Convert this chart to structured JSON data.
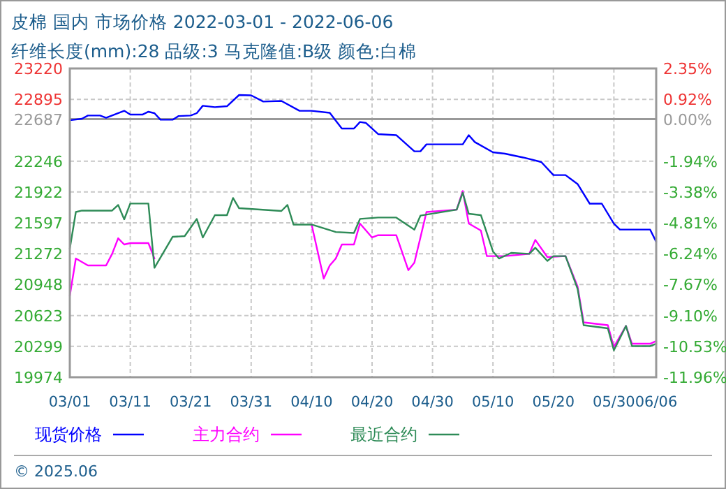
{
  "chart_data": {
    "type": "line",
    "title": "皮棉 国内 市场价格 2022-03-01 - 2022-06-06",
    "subtitle": "纤维长度(mm):28 品级:3 马克隆值:B级 颜色:白棉",
    "annotations": [
      "© 2025.06"
    ],
    "xlim": [
      "2022-03-01",
      "2022-06-06"
    ],
    "xticks": [
      {
        "value": "2022-03-01",
        "label": "03/01"
      },
      {
        "value": "2022-03-11",
        "label": "03/11"
      },
      {
        "value": "2022-03-21",
        "label": "03/21"
      },
      {
        "value": "2022-03-31",
        "label": "03/31"
      },
      {
        "value": "2022-04-10",
        "label": "04/10"
      },
      {
        "value": "2022-04-20",
        "label": "04/20"
      },
      {
        "value": "2022-04-30",
        "label": "04/30"
      },
      {
        "value": "2022-05-10",
        "label": "05/10"
      },
      {
        "value": "2022-05-20",
        "label": "05/20"
      },
      {
        "value": "2022-05-30",
        "label": "05/30"
      },
      {
        "value": "2022-06-06",
        "label": "06/06"
      }
    ],
    "ylim": [
      19974,
      23220
    ],
    "yticks": [
      23220,
      22895,
      22687,
      22246,
      21922,
      21597,
      21272,
      20948,
      20623,
      20299,
      19974
    ],
    "y2lim": [
      -11.96,
      2.35
    ],
    "y2ticks": [
      {
        "value": 2.35,
        "label": "2.35%"
      },
      {
        "value": 0.92,
        "label": "0.92%"
      },
      {
        "value": 0,
        "label": "0.00%"
      },
      {
        "value": -1.94,
        "label": "-1.94%"
      },
      {
        "value": -3.38,
        "label": "-3.38%"
      },
      {
        "value": -4.81,
        "label": "-4.81%"
      },
      {
        "value": -6.24,
        "label": "-6.24%"
      },
      {
        "value": -7.67,
        "label": "-7.67%"
      },
      {
        "value": -9.1,
        "label": "-9.10%"
      },
      {
        "value": -10.53,
        "label": "-10.53%"
      },
      {
        "value": -11.96,
        "label": "-11.96%"
      }
    ],
    "ref_lines": [
      {
        "axis": "y",
        "value": 22687,
        "color": "#999999"
      }
    ],
    "grid": true,
    "legend": "bottom",
    "line_style": "solid",
    "marker": "none",
    "series": [
      {
        "name": "现货价格",
        "color": "#0000ff",
        "x": [
          "2022-03-01",
          "2022-03-03",
          "2022-03-04",
          "2022-03-06",
          "2022-03-07",
          "2022-03-10",
          "2022-03-11",
          "2022-03-13",
          "2022-03-14",
          "2022-03-15",
          "2022-03-16",
          "2022-03-18",
          "2022-03-19",
          "2022-03-21",
          "2022-03-22",
          "2022-03-23",
          "2022-03-25",
          "2022-03-27",
          "2022-03-29",
          "2022-03-31",
          "2022-04-02",
          "2022-04-05",
          "2022-04-08",
          "2022-04-10",
          "2022-04-13",
          "2022-04-15",
          "2022-04-17",
          "2022-04-18",
          "2022-04-19",
          "2022-04-21",
          "2022-04-24",
          "2022-04-27",
          "2022-04-28",
          "2022-04-29",
          "2022-05-05",
          "2022-05-06",
          "2022-05-07",
          "2022-05-10",
          "2022-05-12",
          "2022-05-15",
          "2022-05-18",
          "2022-05-20",
          "2022-05-22",
          "2022-05-24",
          "2022-05-26",
          "2022-05-28",
          "2022-05-30",
          "2022-05-31",
          "2022-06-05",
          "2022-06-06"
        ],
        "values": [
          22676,
          22691,
          22725,
          22725,
          22701,
          22775,
          22735,
          22735,
          22765,
          22750,
          22681,
          22681,
          22720,
          22725,
          22750,
          22828,
          22813,
          22823,
          22941,
          22937,
          22872,
          22878,
          22775,
          22775,
          22754,
          22588,
          22588,
          22657,
          22647,
          22530,
          22519,
          22349,
          22349,
          22422,
          22422,
          22519,
          22446,
          22339,
          22324,
          22284,
          22236,
          22099,
          22099,
          22005,
          21799,
          21799,
          21589,
          21526,
          21526,
          21398
        ]
      },
      {
        "name": "主力合约",
        "color": "#ff00ff",
        "x": [
          "2022-03-01",
          "2022-03-02",
          "2022-03-04",
          "2022-03-07",
          "2022-03-08",
          "2022-03-09",
          "2022-03-10",
          "2022-03-11",
          "2022-03-14",
          "2022-03-15",
          "2022-03-16",
          "2022-04-10",
          "2022-04-12",
          "2022-04-13",
          "2022-04-14",
          "2022-04-15",
          "2022-04-17",
          "2022-04-18",
          "2022-04-20",
          "2022-04-21",
          "2022-04-24",
          "2022-04-26",
          "2022-04-27",
          "2022-04-28",
          "2022-04-29",
          "2022-05-04",
          "2022-05-05",
          "2022-05-06",
          "2022-05-08",
          "2022-05-09",
          "2022-05-12",
          "2022-05-16",
          "2022-05-17",
          "2022-05-19",
          "2022-05-22",
          "2022-05-24",
          "2022-05-25",
          "2022-05-29",
          "2022-05-30",
          "2022-06-01",
          "2022-06-02",
          "2022-06-05",
          "2022-06-06"
        ],
        "values": [
          20830,
          21222,
          21149,
          21149,
          21271,
          21435,
          21369,
          21384,
          21384,
          21222,
          null,
          21579,
          21012,
          21149,
          21222,
          21369,
          21369,
          21589,
          21443,
          21467,
          21467,
          21100,
          21178,
          21443,
          21711,
          21736,
          21932,
          21589,
          21516,
          21247,
          21247,
          21271,
          21418,
          21237,
          21247,
          20928,
          20551,
          20521,
          20292,
          20513,
          20326,
          20326,
          20355
        ]
      },
      {
        "name": "最近合约",
        "color": "#2e8b57",
        "x": [
          "2022-03-01",
          "2022-03-02",
          "2022-03-03",
          "2022-03-08",
          "2022-03-09",
          "2022-03-10",
          "2022-03-11",
          "2022-03-14",
          "2022-03-15",
          "2022-03-18",
          "2022-03-20",
          "2022-03-22",
          "2022-03-23",
          "2022-03-25",
          "2022-03-27",
          "2022-03-28",
          "2022-03-29",
          "2022-04-05",
          "2022-04-06",
          "2022-04-07",
          "2022-04-10",
          "2022-04-14",
          "2022-04-17",
          "2022-04-18",
          "2022-04-21",
          "2022-04-24",
          "2022-04-27",
          "2022-04-28",
          "2022-05-04",
          "2022-05-05",
          "2022-05-06",
          "2022-05-08",
          "2022-05-10",
          "2022-05-11",
          "2022-05-13",
          "2022-05-16",
          "2022-05-17",
          "2022-05-19",
          "2022-05-20",
          "2022-05-22",
          "2022-05-24",
          "2022-05-25",
          "2022-05-29",
          "2022-05-30",
          "2022-06-01",
          "2022-06-02",
          "2022-06-05",
          "2022-06-06"
        ],
        "values": [
          21325,
          21711,
          21726,
          21726,
          21785,
          21634,
          21800,
          21800,
          21124,
          21450,
          21457,
          21638,
          21443,
          21678,
          21678,
          21858,
          21751,
          21722,
          21785,
          21579,
          21579,
          21501,
          21491,
          21638,
          21653,
          21653,
          21526,
          21673,
          21736,
          21913,
          21692,
          21678,
          21296,
          21222,
          21281,
          21271,
          21335,
          21197,
          21247,
          21247,
          20903,
          20521,
          20488,
          20257,
          20513,
          20301,
          20301,
          20326
        ]
      }
    ]
  }
}
